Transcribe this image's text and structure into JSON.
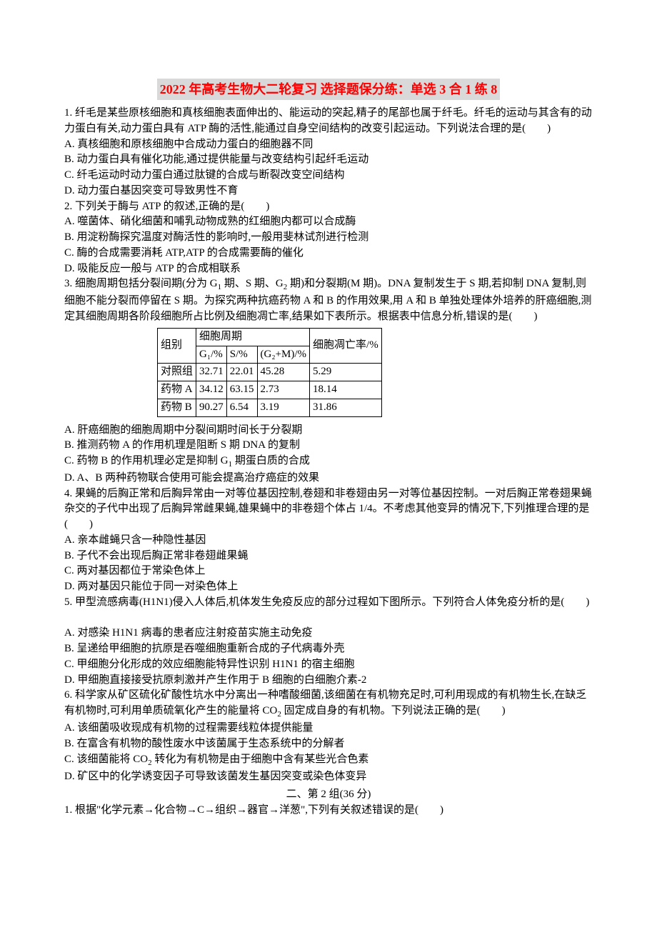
{
  "title": "2022 年高考生物大二轮复习 选择题保分练：单选 3 合 1 练 8",
  "q1": {
    "stem": "1. 纤毛是某些原核细胞和真核细胞表面伸出的、能运动的突起,精子的尾部也属于纤毛。纤毛的运动与其含有的动力蛋白有关,动力蛋白具有 ATP 酶的活性,能通过自身空间结构的改变引起运动。下列说法合理的是(　　)",
    "A": "A. 真核细胞和原核细胞中合成动力蛋白的细胞器不同",
    "B": "B. 动力蛋白具有催化功能,通过提供能量与改变结构引起纤毛运动",
    "C": "C. 纤毛运动时动力蛋白通过肽键的合成与断裂改变空间结构",
    "D": "D. 动力蛋白基因突变可导致男性不育"
  },
  "q2": {
    "stem": "2. 下列关于酶与 ATP 的叙述,正确的是(　　)",
    "A": "A. 噬菌体、硝化细菌和哺乳动物成熟的红细胞内都可以合成酶",
    "B": "B. 用淀粉酶探究温度对酶活性的影响时,一般用斐林试剂进行检测",
    "C": "C. 酶的合成需要消耗 ATP,ATP 的合成需要酶的催化",
    "D": "D. 吸能反应一般与 ATP 的合成相联系"
  },
  "q3": {
    "stem_a": "3. 细胞周期包括分裂间期(分为 G",
    "stem_b": " 期、S 期、G",
    "stem_c": " 期)和分裂期(M 期)。DNA 复制发生于 S 期,若抑制 DNA 复制,则细胞不能分裂而停留在 S 期。为探究两种抗癌药物 A 和 B 的作用效果,用 A 和 B 单独处理体外培养的肝癌细胞,测定其细胞周期各阶段细胞所占比例及细胞凋亡率,结果如下表所示。根据表中信息分析,错误的是(　　)",
    "A": "A. 肝癌细胞的细胞周期中分裂间期时间长于分裂期",
    "B": "B. 推测药物 A 的作用机理是阻断 S 期 DNA 的复制",
    "C_a": "C. 药物 B 的作用机理必定是抑制 G",
    "C_b": " 期蛋白质的合成",
    "D": "D. A、B 两种药物联合使用可能会提高治疗癌症的效果"
  },
  "table": {
    "h_group": "组别",
    "h_cycle": "细胞周期",
    "h_apop": "细胞凋亡率/%",
    "h_g1": "G₁/%",
    "h_s": "S/%",
    "h_g2m": "(G₂+M)/%",
    "rows": [
      {
        "g": "对照组",
        "g1": "32.71",
        "s": "22.01",
        "g2m": "45.28",
        "ap": "5.29"
      },
      {
        "g": "药物 A",
        "g1": "34.12",
        "s": "63.15",
        "g2m": "2.73",
        "ap": "18.14"
      },
      {
        "g": "药物 B",
        "g1": "90.27",
        "s": "6.54",
        "g2m": "3.19",
        "ap": "31.86"
      }
    ]
  },
  "q4": {
    "stem": "4. 果蝇的后胸正常和后胸异常由一对等位基因控制,卷翅和非卷翅由另一对等位基因控制。一对后胸正常卷翅果蝇杂交的子代中出现了后胸异常雌果蝇,雄果蝇中的非卷翅个体占 1/4。不考虑其他变异的情况下,下列推理合理的是(　　)",
    "A": "A. 亲本雌蝇只含一种隐性基因",
    "B": "B. 子代不会出现后胸正常非卷翅雌果蝇",
    "C": "C. 两对基因都位于常染色体上",
    "D": "D. 两对基因只能位于同一对染色体上"
  },
  "q5": {
    "stem": "5. 甲型流感病毒(H1N1)侵入人体后,机体发生免疫反应的部分过程如下图所示。下列符合人体免疫分析的是(　　)",
    "A": "A. 对感染 H1N1 病毒的患者应注射疫苗实施主动免疫",
    "B": "B. 呈递给甲细胞的抗原是吞噬细胞重新合成的子代病毒外壳",
    "C": "C. 甲细胞分化形成的效应细胞能特异性识别 H1N1 的宿主细胞",
    "D": "D. 甲细胞直接接受抗原刺激并产生作用于 B 细胞的白细胞介素-2"
  },
  "q6": {
    "stem_a": "6. 科学家从矿区硫化矿酸性坑水中分离出一种嗜酸细菌,该细菌在有机物充足时,可利用现成的有机物生长,在缺乏有机物时,可利用单质硫氧化产生的能量将 CO",
    "stem_b": " 固定成自身的有机物。下列说法正确的是(　　)",
    "A": "A. 该细菌吸收现成有机物的过程需要线粒体提供能量",
    "B": "B. 在富含有机物的酸性废水中该菌属于生态系统中的分解者",
    "C_a": "C. 该细菌能将 CO",
    "C_b": " 转化为有机物是由于细胞中含有某些光合色素",
    "D": "D. 矿区中的化学诱变因子可导致该菌发生基因突变或染色体变异"
  },
  "section2": "二、第 2 组(36 分)",
  "s2q1": "1. 根据\"化学元素→化合物→C→组织→器官→洋葱\",下列有关叙述错误的是(　　)"
}
